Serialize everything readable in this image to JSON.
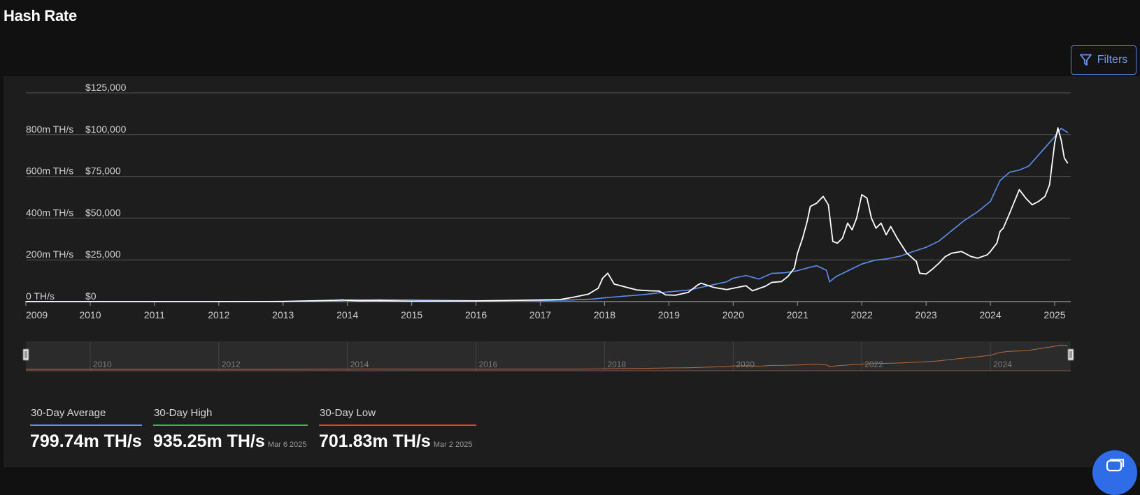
{
  "page": {
    "title": "Hash Rate"
  },
  "toolbar": {
    "filters_label": "Filters"
  },
  "colors": {
    "background": "#111111",
    "panel": "#1d1d1d",
    "hash_rate": "#5b8ef0",
    "price": "#ffffff",
    "grid": "#555555",
    "navigator_series": "#b86a3a",
    "avg_accent": "#5b8ef0",
    "high_accent": "#2bbf3a",
    "low_accent": "#e0412b"
  },
  "icons": {
    "filters": "filter-funnel-icon",
    "chat": "chat-icon"
  },
  "stats": [
    {
      "label": "30-Day Average",
      "value": "799.74m TH/s",
      "date": ""
    },
    {
      "label": "30-Day High",
      "value": "935.25m TH/s",
      "date": "Mar 6 2025"
    },
    {
      "label": "30-Day Low",
      "value": "701.83m TH/s",
      "date": "Mar 2 2025"
    }
  ],
  "chart_data": {
    "type": "line",
    "title": "",
    "y_axis_left": {
      "ticks": [
        "0 TH/s",
        "200m TH/s",
        "400m TH/s",
        "600m TH/s",
        "800m TH/s"
      ],
      "range": [
        0,
        1000
      ]
    },
    "y_axis_right": {
      "ticks": [
        "$0",
        "$25,000",
        "$50,000",
        "$75,000",
        "$100,000",
        "$125,000"
      ],
      "range": [
        0,
        125000
      ]
    },
    "x_axis": {
      "ticks": [
        "2009",
        "2010",
        "2011",
        "2012",
        "2013",
        "2014",
        "2015",
        "2016",
        "2017",
        "2018",
        "2019",
        "2020",
        "2021",
        "2022",
        "2023",
        "2024",
        "2025"
      ],
      "range": [
        2009.0,
        2025.25
      ]
    },
    "grid": true,
    "series": [
      {
        "axis": "left",
        "x": [
          2009.0,
          2010.0,
          2011.0,
          2012.0,
          2013.0,
          2013.9,
          2014.0,
          2014.5,
          2015.0,
          2016.0,
          2016.5,
          2017.0,
          2017.5,
          2017.8,
          2018.0,
          2018.3,
          2018.6,
          2018.85,
          2019.0,
          2019.3,
          2019.6,
          2019.9,
          2020.0,
          2020.2,
          2020.4,
          2020.6,
          2020.8,
          2021.0,
          2021.2,
          2021.3,
          2021.45,
          2021.5,
          2021.6,
          2021.8,
          2022.0,
          2022.2,
          2022.4,
          2022.6,
          2022.8,
          2023.0,
          2023.2,
          2023.4,
          2023.6,
          2023.8,
          2024.0,
          2024.15,
          2024.3,
          2024.45,
          2024.6,
          2024.8,
          2025.0,
          2025.1,
          2025.2
        ],
        "values": [
          0,
          0,
          0,
          0,
          0,
          4,
          8,
          10,
          8,
          4,
          6,
          5,
          8,
          12,
          18,
          26,
          33,
          42,
          47,
          55,
          75,
          95,
          112,
          125,
          108,
          135,
          138,
          148,
          165,
          172,
          150,
          95,
          120,
          150,
          180,
          198,
          205,
          218,
          240,
          260,
          290,
          340,
          390,
          430,
          480,
          580,
          620,
          630,
          650,
          720,
          790,
          830,
          810
        ]
      },
      {
        "axis": "right",
        "x": [
          2009.0,
          2010.0,
          2011.0,
          2012.0,
          2013.0,
          2013.8,
          2013.92,
          2014.0,
          2014.2,
          2014.5,
          2015.0,
          2016.0,
          2016.5,
          2017.0,
          2017.3,
          2017.5,
          2017.75,
          2017.9,
          2017.97,
          2018.05,
          2018.15,
          2018.3,
          2018.5,
          2018.7,
          2018.85,
          2018.95,
          2019.1,
          2019.3,
          2019.45,
          2019.5,
          2019.7,
          2019.9,
          2020.1,
          2020.2,
          2020.3,
          2020.5,
          2020.6,
          2020.75,
          2020.85,
          2020.95,
          2021.0,
          2021.08,
          2021.15,
          2021.2,
          2021.3,
          2021.4,
          2021.48,
          2021.55,
          2021.62,
          2021.7,
          2021.78,
          2021.85,
          2021.92,
          2022.0,
          2022.08,
          2022.15,
          2022.22,
          2022.3,
          2022.38,
          2022.45,
          2022.55,
          2022.7,
          2022.85,
          2022.9,
          2023.0,
          2023.1,
          2023.2,
          2023.3,
          2023.4,
          2023.55,
          2023.7,
          2023.8,
          2023.95,
          2024.0,
          2024.1,
          2024.15,
          2024.2,
          2024.3,
          2024.45,
          2024.55,
          2024.65,
          2024.75,
          2024.85,
          2024.92,
          2025.0,
          2025.05,
          2025.1,
          2025.15,
          2025.2
        ],
        "values": [
          0,
          0,
          0,
          0,
          100,
          800,
          1000,
          800,
          500,
          600,
          250,
          400,
          650,
          1000,
          1200,
          2500,
          4500,
          8000,
          14000,
          17000,
          10500,
          9000,
          7000,
          6500,
          6300,
          4000,
          3800,
          5500,
          10000,
          11000,
          8500,
          7200,
          8800,
          9500,
          6500,
          9200,
          11500,
          12000,
          15000,
          20000,
          29000,
          38000,
          48000,
          57000,
          59000,
          63000,
          58000,
          36000,
          35000,
          38000,
          47000,
          43000,
          50000,
          64000,
          62000,
          50000,
          44000,
          47000,
          40000,
          45000,
          38000,
          29000,
          24000,
          17000,
          16500,
          19500,
          23000,
          27000,
          29000,
          30000,
          27000,
          26000,
          28000,
          30000,
          35000,
          42000,
          44000,
          53000,
          67000,
          62000,
          58000,
          60000,
          63000,
          70000,
          95000,
          104000,
          97000,
          86000,
          83000
        ]
      }
    ],
    "navigator": {
      "ticks": [
        "2010",
        "2012",
        "2014",
        "2016",
        "2018",
        "2020",
        "2022",
        "2024"
      ]
    }
  }
}
